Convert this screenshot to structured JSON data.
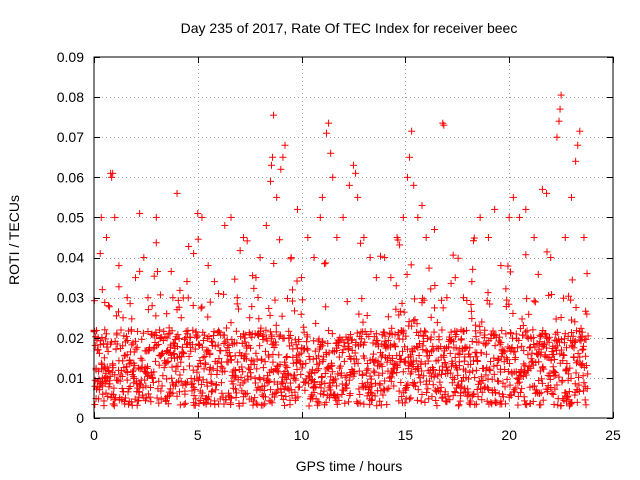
{
  "chart_data": {
    "type": "scatter",
    "title": "Day 235 of 2017, Rate Of TEC Index for receiver beec",
    "xlabel": "GPS time / hours",
    "ylabel": "ROTI / TECUs",
    "xlim": [
      0,
      25
    ],
    "ylim": [
      0,
      0.09
    ],
    "xticks": [
      0,
      5,
      10,
      15,
      20,
      25
    ],
    "xtick_labels": [
      "0",
      "5",
      "10",
      "15",
      "20",
      "25"
    ],
    "yticks": [
      0,
      0.01,
      0.02,
      0.03,
      0.04,
      0.05,
      0.06,
      0.07,
      0.08,
      0.09
    ],
    "ytick_labels": [
      "0",
      "0.01",
      "0.02",
      "0.03",
      "0.04",
      "0.05",
      "0.06",
      "0.07",
      "0.08",
      "0.09"
    ],
    "grid": true,
    "marker": "+",
    "color": "#ff0000",
    "series": [
      {
        "name": "",
        "points": [
          [
            0.1,
            0.012
          ],
          [
            0.2,
            0.02
          ],
          [
            0.3,
            0.041
          ],
          [
            0.35,
            0.05
          ],
          [
            0.4,
            0.032
          ],
          [
            0.5,
            0.015
          ],
          [
            0.6,
            0.045
          ],
          [
            0.7,
            0.028
          ],
          [
            0.8,
            0.061
          ],
          [
            0.85,
            0.06
          ],
          [
            0.9,
            0.061
          ],
          [
            1.0,
            0.05
          ],
          [
            1.2,
            0.038
          ],
          [
            1.4,
            0.025
          ],
          [
            1.6,
            0.03
          ],
          [
            1.8,
            0.022
          ],
          [
            2.0,
            0.035
          ],
          [
            2.2,
            0.051
          ],
          [
            2.4,
            0.04
          ],
          [
            2.6,
            0.03
          ],
          [
            2.8,
            0.028
          ],
          [
            3.0,
            0.05
          ],
          [
            3.2,
            0.02
          ],
          [
            3.5,
            0.026
          ],
          [
            3.8,
            0.03
          ],
          [
            4.0,
            0.056
          ],
          [
            4.2,
            0.025
          ],
          [
            4.5,
            0.021
          ],
          [
            4.8,
            0.041
          ],
          [
            5.0,
            0.051
          ],
          [
            5.2,
            0.05
          ],
          [
            5.5,
            0.038
          ],
          [
            5.8,
            0.034
          ],
          [
            6.0,
            0.031
          ],
          [
            6.3,
            0.048
          ],
          [
            6.6,
            0.05
          ],
          [
            6.9,
            0.03
          ],
          [
            7.2,
            0.045
          ],
          [
            7.5,
            0.025
          ],
          [
            7.8,
            0.035
          ],
          [
            8.0,
            0.04
          ],
          [
            8.3,
            0.048
          ],
          [
            8.5,
            0.059
          ],
          [
            8.55,
            0.063
          ],
          [
            8.6,
            0.065
          ],
          [
            8.65,
            0.0755
          ],
          [
            8.8,
            0.055
          ],
          [
            9.0,
            0.062
          ],
          [
            9.1,
            0.065
          ],
          [
            9.2,
            0.068
          ],
          [
            9.5,
            0.04
          ],
          [
            9.8,
            0.052
          ],
          [
            10.0,
            0.035
          ],
          [
            10.3,
            0.045
          ],
          [
            10.6,
            0.04
          ],
          [
            10.9,
            0.05
          ],
          [
            11.0,
            0.055
          ],
          [
            11.2,
            0.071
          ],
          [
            11.3,
            0.0735
          ],
          [
            11.4,
            0.066
          ],
          [
            11.5,
            0.06
          ],
          [
            11.7,
            0.045
          ],
          [
            12.0,
            0.05
          ],
          [
            12.3,
            0.058
          ],
          [
            12.5,
            0.063
          ],
          [
            12.6,
            0.061
          ],
          [
            12.7,
            0.055
          ],
          [
            13.0,
            0.045
          ],
          [
            13.3,
            0.04
          ],
          [
            13.6,
            0.035
          ],
          [
            14.0,
            0.04
          ],
          [
            14.3,
            0.035
          ],
          [
            14.6,
            0.045
          ],
          [
            14.9,
            0.05
          ],
          [
            15.1,
            0.06
          ],
          [
            15.2,
            0.065
          ],
          [
            15.3,
            0.0715
          ],
          [
            15.4,
            0.058
          ],
          [
            15.6,
            0.05
          ],
          [
            15.8,
            0.053
          ],
          [
            16.0,
            0.045
          ],
          [
            16.4,
            0.047
          ],
          [
            16.8,
            0.0735
          ],
          [
            16.85,
            0.073
          ],
          [
            17.0,
            0.03
          ],
          [
            17.4,
            0.035
          ],
          [
            17.8,
            0.03
          ],
          [
            18.2,
            0.034
          ],
          [
            18.6,
            0.05
          ],
          [
            19.0,
            0.045
          ],
          [
            19.3,
            0.052
          ],
          [
            19.6,
            0.038
          ],
          [
            20.0,
            0.05
          ],
          [
            20.2,
            0.055
          ],
          [
            20.5,
            0.05
          ],
          [
            20.8,
            0.052
          ],
          [
            21.2,
            0.045
          ],
          [
            21.6,
            0.057
          ],
          [
            21.8,
            0.056
          ],
          [
            22.0,
            0.04
          ],
          [
            22.3,
            0.07
          ],
          [
            22.4,
            0.074
          ],
          [
            22.45,
            0.077
          ],
          [
            22.5,
            0.0805
          ],
          [
            22.7,
            0.045
          ],
          [
            23.0,
            0.055
          ],
          [
            23.2,
            0.064
          ],
          [
            23.3,
            0.068
          ],
          [
            23.4,
            0.0715
          ],
          [
            23.6,
            0.045
          ],
          [
            23.75,
            0.036
          ]
        ]
      }
    ],
    "dense_band": {
      "x_start": 0.0,
      "x_end": 23.8,
      "step": 0.02,
      "base_min": 0.003,
      "base_max": 0.022,
      "spike_max": 0.045
    }
  }
}
